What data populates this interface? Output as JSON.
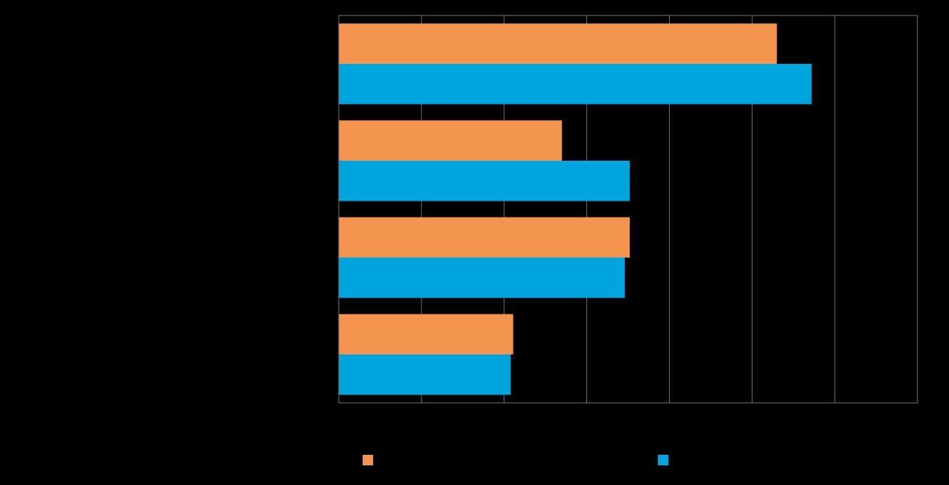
{
  "chart_data": {
    "type": "bar",
    "orientation": "horizontal",
    "categories": [
      "",
      "",
      "",
      ""
    ],
    "series": [
      {
        "color": "#F29350",
        "values": [
          53,
          27,
          35.2,
          21.1
        ]
      },
      {
        "color": "#00A4DC",
        "values": [
          57.2,
          35.2,
          34.6,
          20.8
        ]
      }
    ],
    "xlim": [
      0,
      70
    ],
    "grid": true,
    "legend": "bottom"
  }
}
